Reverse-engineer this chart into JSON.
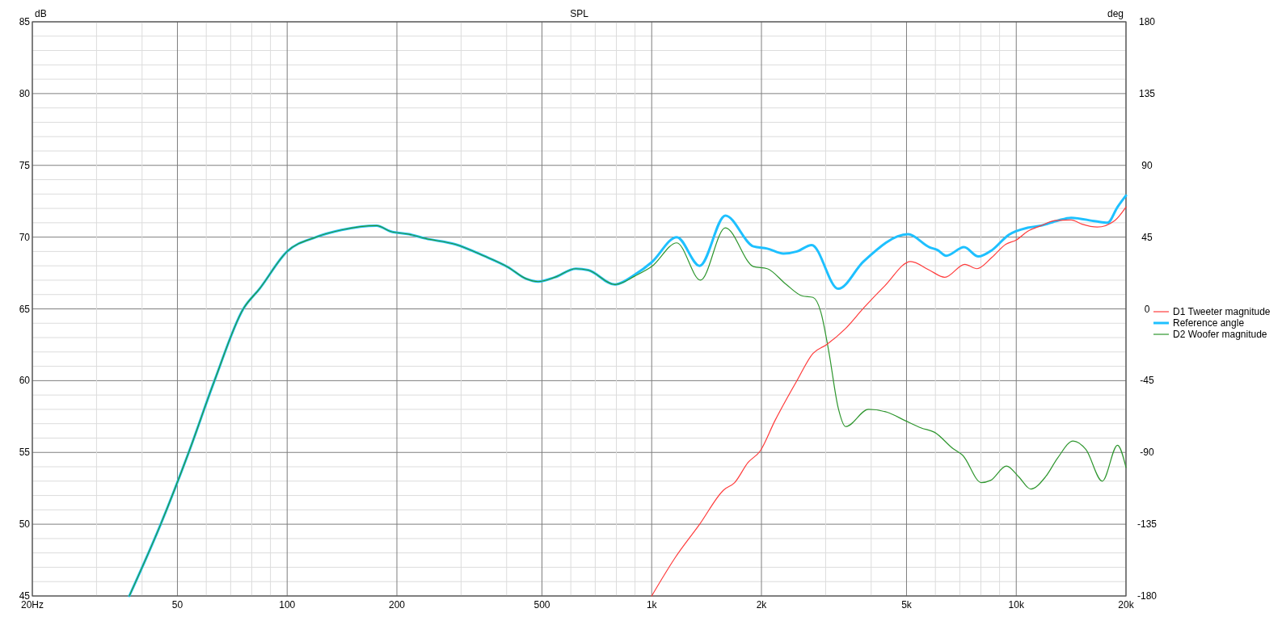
{
  "chart_data": {
    "type": "line",
    "title": "SPL",
    "ylabel": "dB",
    "y2label": "deg",
    "log": "x",
    "grid": true,
    "legend": "right",
    "xlim": [
      20,
      20000
    ],
    "xticks": [
      {
        "value": 20,
        "label": "20Hz"
      },
      {
        "value": 30,
        "label": null
      },
      {
        "value": 40,
        "label": null
      },
      50,
      {
        "value": 60,
        "label": null
      },
      {
        "value": 70,
        "label": null
      },
      {
        "value": 80,
        "label": null
      },
      {
        "value": 90,
        "label": null
      },
      100,
      200,
      {
        "value": 300,
        "label": null
      },
      {
        "value": 400,
        "label": null
      },
      500,
      {
        "value": 600,
        "label": null
      },
      {
        "value": 700,
        "label": null
      },
      {
        "value": 800,
        "label": null
      },
      {
        "value": 900,
        "label": null
      },
      {
        "value": 1000,
        "label": "1k"
      },
      {
        "value": 2000,
        "label": "2k"
      },
      {
        "value": 3000,
        "label": null
      },
      {
        "value": 4000,
        "label": null
      },
      {
        "value": 5000,
        "label": "5k"
      },
      {
        "value": 6000,
        "label": null
      },
      {
        "value": 7000,
        "label": null
      },
      {
        "value": 8000,
        "label": null
      },
      {
        "value": 9000,
        "label": null
      },
      {
        "value": 10000,
        "label": "10k"
      },
      {
        "value": 20000,
        "label": "20k"
      }
    ],
    "ylim": [
      45,
      85
    ],
    "yticks": [
      45,
      {
        "value": 46,
        "label": null
      },
      {
        "value": 47,
        "label": null
      },
      {
        "value": 48,
        "label": null
      },
      {
        "value": 49,
        "label": null
      },
      50,
      {
        "value": 51,
        "label": null
      },
      {
        "value": 52,
        "label": null
      },
      {
        "value": 53,
        "label": null
      },
      {
        "value": 54,
        "label": null
      },
      55,
      {
        "value": 56,
        "label": null
      },
      {
        "value": 57,
        "label": null
      },
      {
        "value": 58,
        "label": null
      },
      {
        "value": 59,
        "label": null
      },
      60,
      {
        "value": 61,
        "label": null
      },
      {
        "value": 62,
        "label": null
      },
      {
        "value": 63,
        "label": null
      },
      {
        "value": 64,
        "label": null
      },
      65,
      {
        "value": 66,
        "label": null
      },
      {
        "value": 67,
        "label": null
      },
      {
        "value": 68,
        "label": null
      },
      {
        "value": 69,
        "label": null
      },
      70,
      {
        "value": 71,
        "label": null
      },
      {
        "value": 72,
        "label": null
      },
      {
        "value": 73,
        "label": null
      },
      {
        "value": 74,
        "label": null
      },
      75,
      {
        "value": 76,
        "label": null
      },
      {
        "value": 77,
        "label": null
      },
      {
        "value": 78,
        "label": null
      },
      {
        "value": 79,
        "label": null
      },
      80,
      {
        "value": 81,
        "label": null
      },
      {
        "value": 82,
        "label": null
      },
      {
        "value": 83,
        "label": null
      },
      {
        "value": 84,
        "label": null
      },
      85
    ],
    "y2lim": [
      -180,
      180
    ],
    "y2ticks": [
      -180,
      -135,
      -90,
      -45,
      0,
      45,
      90,
      135,
      180
    ],
    "series": [
      {
        "name": "D1 Tweeter magnitude",
        "color": "#ff3c3c",
        "x": [
          1000,
          1162,
          1354,
          1578,
          1689,
          1838,
          1984,
          2177,
          2503,
          2770,
          3013,
          3392,
          3809,
          4356,
          5134,
          5776,
          6370,
          7226,
          7800,
          8585,
          9360,
          10000,
          10740,
          11700,
          12760,
          14150,
          15160,
          16680,
          18620,
          20000
        ],
        "values": [
          45,
          47.7,
          50.0,
          52.4,
          52.9,
          54.3,
          55.1,
          57.2,
          60.0,
          61.9,
          62.5,
          63.6,
          65.05,
          66.6,
          68.3,
          67.7,
          67.2,
          68.1,
          67.8,
          68.6,
          69.5,
          69.8,
          70.4,
          70.8,
          71.15,
          71.2,
          70.9,
          70.7,
          71.15,
          72.1
        ]
      },
      {
        "name": "Reference angle",
        "color": "#1ec0ff",
        "x": [
          36.9,
          45,
          53.7,
          63.2,
          75.8,
          84,
          100,
          120,
          141,
          176,
          192,
          216,
          240,
          289,
          346,
          404,
          452,
          488,
          542,
          619,
          670,
          792,
          901,
          1000,
          1172,
          1354,
          1592,
          1902,
          2075,
          2299,
          2503,
          2747,
          3248,
          3809,
          5050,
          5776,
          6081,
          6424,
          7190,
          7872,
          8585,
          9523,
          10740,
          11700,
          12980,
          14150,
          16520,
          17800,
          18960,
          20000
        ],
        "values": [
          45,
          50,
          55,
          60,
          65,
          66.4,
          69.0,
          70.0,
          70.5,
          70.8,
          70.4,
          70.2,
          69.9,
          69.5,
          68.7,
          67.9,
          67.1,
          66.9,
          67.2,
          67.8,
          67.7,
          66.7,
          67.4,
          68.25,
          70.0,
          68.0,
          71.5,
          69.35,
          69.2,
          68.85,
          69.0,
          69.45,
          66.4,
          68.3,
          70.2,
          69.3,
          69.1,
          68.7,
          69.3,
          68.65,
          69.1,
          70.15,
          70.65,
          70.8,
          71.15,
          71.35,
          71.1,
          71.0,
          72.1,
          72.9
        ]
      },
      {
        "name": "D2 Woofer magnitude",
        "color": "#2e962e",
        "x": [
          36.9,
          45,
          53.7,
          63.2,
          75.8,
          84,
          100,
          120,
          141,
          176,
          192,
          216,
          240,
          289,
          346,
          404,
          452,
          488,
          542,
          619,
          670,
          792,
          901,
          1000,
          1172,
          1361,
          1592,
          1902,
          2075,
          2340,
          2589,
          2770,
          2909,
          3062,
          3248,
          3404,
          3935,
          4428,
          4969,
          5491,
          5971,
          6720,
          7128,
          8020,
          8500,
          9400,
          10160,
          10960,
          12030,
          12980,
          14320,
          15530,
          17220,
          18960,
          20000
        ],
        "values": [
          45,
          50,
          55,
          60,
          65,
          66.4,
          69.0,
          70.0,
          70.5,
          70.8,
          70.4,
          70.2,
          69.9,
          69.5,
          68.7,
          67.9,
          67.1,
          66.9,
          67.2,
          67.8,
          67.7,
          66.7,
          67.3,
          67.95,
          69.6,
          67.0,
          70.65,
          67.95,
          67.8,
          66.7,
          65.9,
          65.8,
          64.8,
          62.0,
          58.1,
          56.8,
          58.0,
          57.8,
          57.2,
          56.7,
          56.4,
          55.25,
          54.8,
          52.9,
          53.05,
          54.05,
          53.3,
          52.45,
          53.3,
          54.6,
          55.8,
          55.2,
          53.0,
          55.5,
          53.95
        ]
      }
    ]
  }
}
